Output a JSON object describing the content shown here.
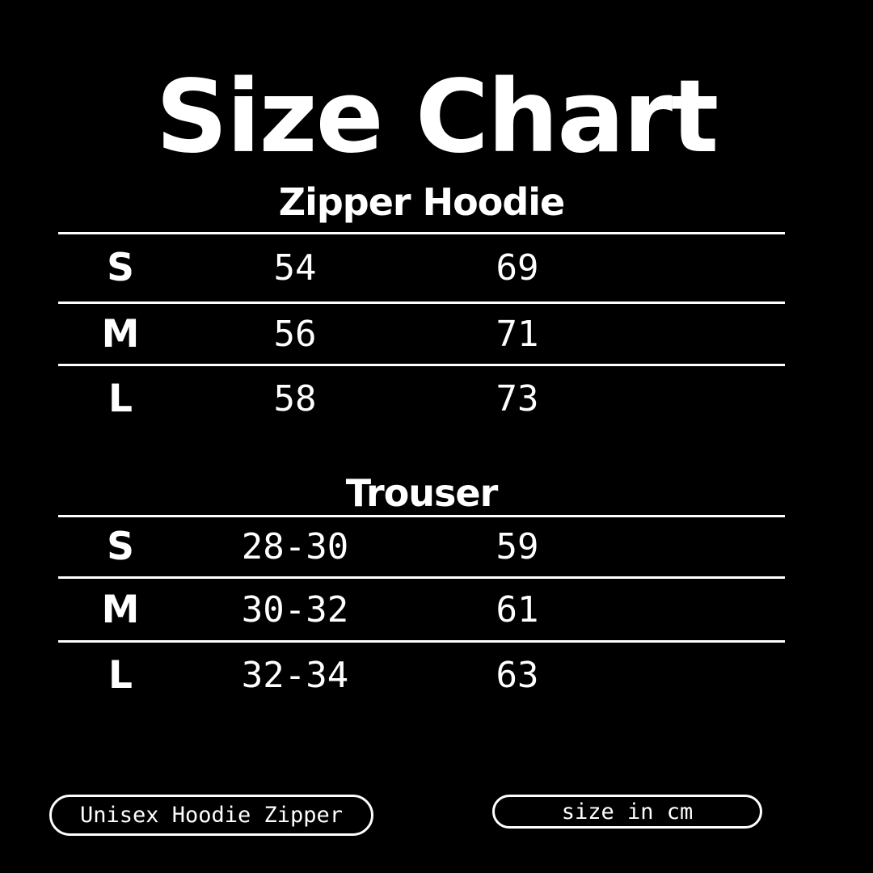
{
  "colors": {
    "background": "#000000",
    "foreground": "#ffffff",
    "divider": "#ffffff"
  },
  "title": "Size Chart",
  "chart_data": [
    {
      "type": "table",
      "title": "Zipper Hoodie",
      "rows": [
        [
          "S",
          "54",
          "69"
        ],
        [
          "M",
          "56",
          "71"
        ],
        [
          "L",
          "58",
          "73"
        ]
      ]
    },
    {
      "type": "table",
      "title": "Trouser",
      "rows": [
        [
          "S",
          "28-30",
          "59"
        ],
        [
          "M",
          "30-32",
          "61"
        ],
        [
          "L",
          "32-34",
          "63"
        ]
      ]
    }
  ],
  "footer": {
    "left_badge": "Unisex Hoodie Zipper",
    "right_badge": "size in cm"
  }
}
